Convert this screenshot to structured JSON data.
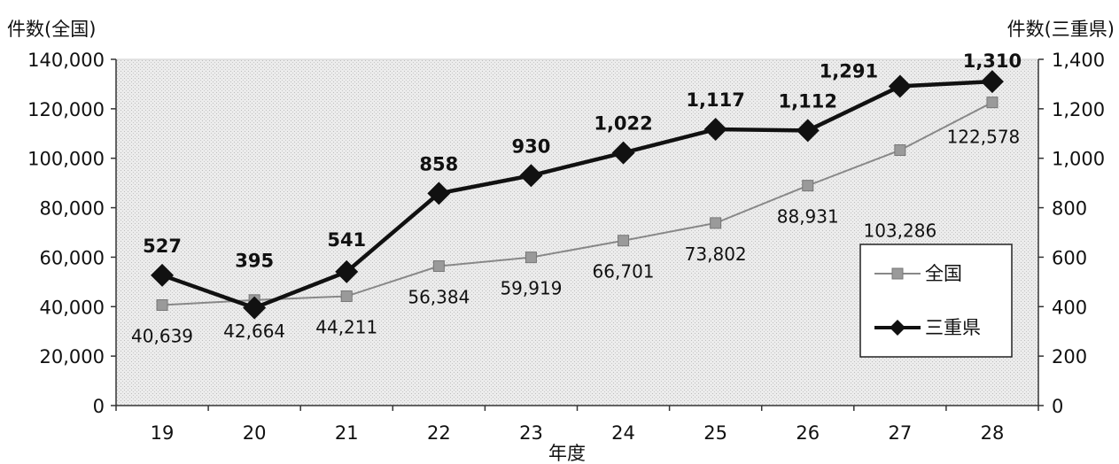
{
  "chart_data": {
    "type": "line",
    "xlabel": "年度",
    "ylabel_left": "件数(全国)",
    "ylabel_right": "件数(三重県)",
    "categories": [
      "19",
      "20",
      "21",
      "22",
      "23",
      "24",
      "25",
      "26",
      "27",
      "28"
    ],
    "left_axis": {
      "ylim": [
        0,
        140000
      ],
      "ticks": [
        "0",
        "20,000",
        "40,000",
        "60,000",
        "80,000",
        "100,000",
        "120,000",
        "140,000"
      ]
    },
    "right_axis": {
      "ylim": [
        0,
        1400
      ],
      "ticks": [
        "0",
        "200",
        "400",
        "600",
        "800",
        "1,000",
        "1,200",
        "1,400"
      ]
    },
    "series": [
      {
        "name": "全国",
        "axis": "left",
        "marker": "square",
        "color": "#888888",
        "values": [
          40639,
          42664,
          44211,
          56384,
          59919,
          66701,
          73802,
          88931,
          103286,
          122578
        ],
        "labels": [
          "40,639",
          "42,664",
          "44,211",
          "56,384",
          "59,919",
          "66,701",
          "73,802",
          "88,931",
          "103,286",
          "122,578"
        ]
      },
      {
        "name": "三重県",
        "axis": "right",
        "marker": "diamond",
        "color": "#111111",
        "values": [
          527,
          395,
          541,
          858,
          930,
          1022,
          1117,
          1112,
          1291,
          1310
        ],
        "labels": [
          "527",
          "395",
          "541",
          "858",
          "930",
          "1,022",
          "1,117",
          "1,112",
          "1,291",
          "1,310"
        ]
      }
    ],
    "legend": {
      "placement": "right",
      "items": [
        "全国",
        "三重県"
      ]
    },
    "grid": false,
    "background": "#e4e4e4"
  }
}
